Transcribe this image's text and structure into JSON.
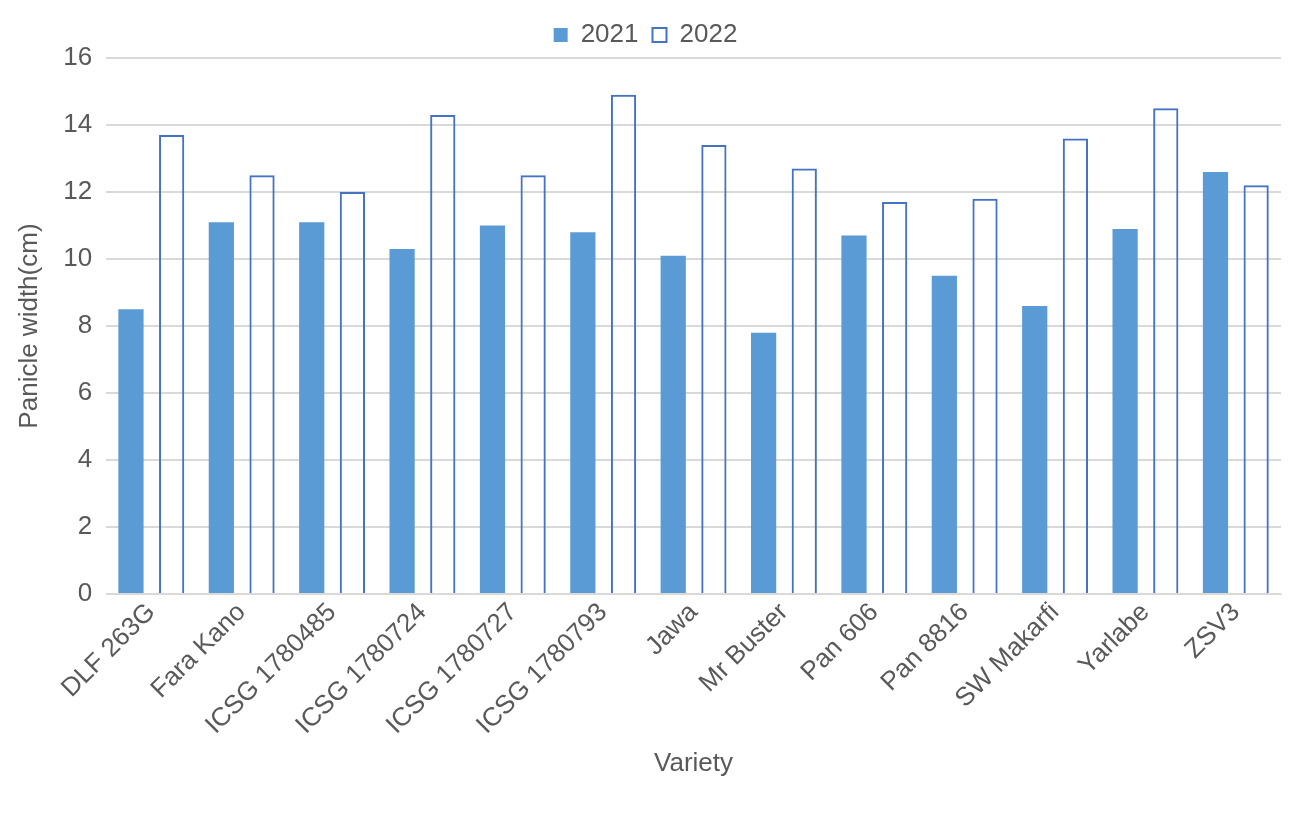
{
  "chart_data": {
    "type": "bar",
    "xlabel": "Variety",
    "ylabel": "Panicle width(cm)",
    "categories": [
      "DLF 263G",
      "Fara Kano",
      "ICSG 1780485",
      "ICSG 1780724",
      "ICSG 1780727",
      "ICSG 1780793",
      "Jawa",
      "Mr Buster",
      "Pan 606",
      "Pan 8816",
      "SW Makarfi",
      "Yarlabe",
      "ZSV3"
    ],
    "series": [
      {
        "name": "2021",
        "color": "#5b9bd5",
        "values": [
          8.5,
          11.1,
          11.1,
          10.3,
          11.0,
          10.8,
          10.1,
          7.8,
          10.7,
          9.5,
          8.6,
          10.9,
          12.6
        ]
      },
      {
        "name": "2022",
        "color": "#4472c4",
        "values": [
          13.7,
          12.5,
          12.0,
          14.3,
          12.5,
          14.9,
          13.4,
          12.7,
          11.7,
          11.8,
          13.6,
          14.5,
          12.2
        ]
      }
    ],
    "ylim": [
      0,
      16
    ],
    "yticks": [
      0,
      2,
      4,
      6,
      8,
      10,
      12,
      14,
      16
    ],
    "grid": "y",
    "legend": "top"
  }
}
